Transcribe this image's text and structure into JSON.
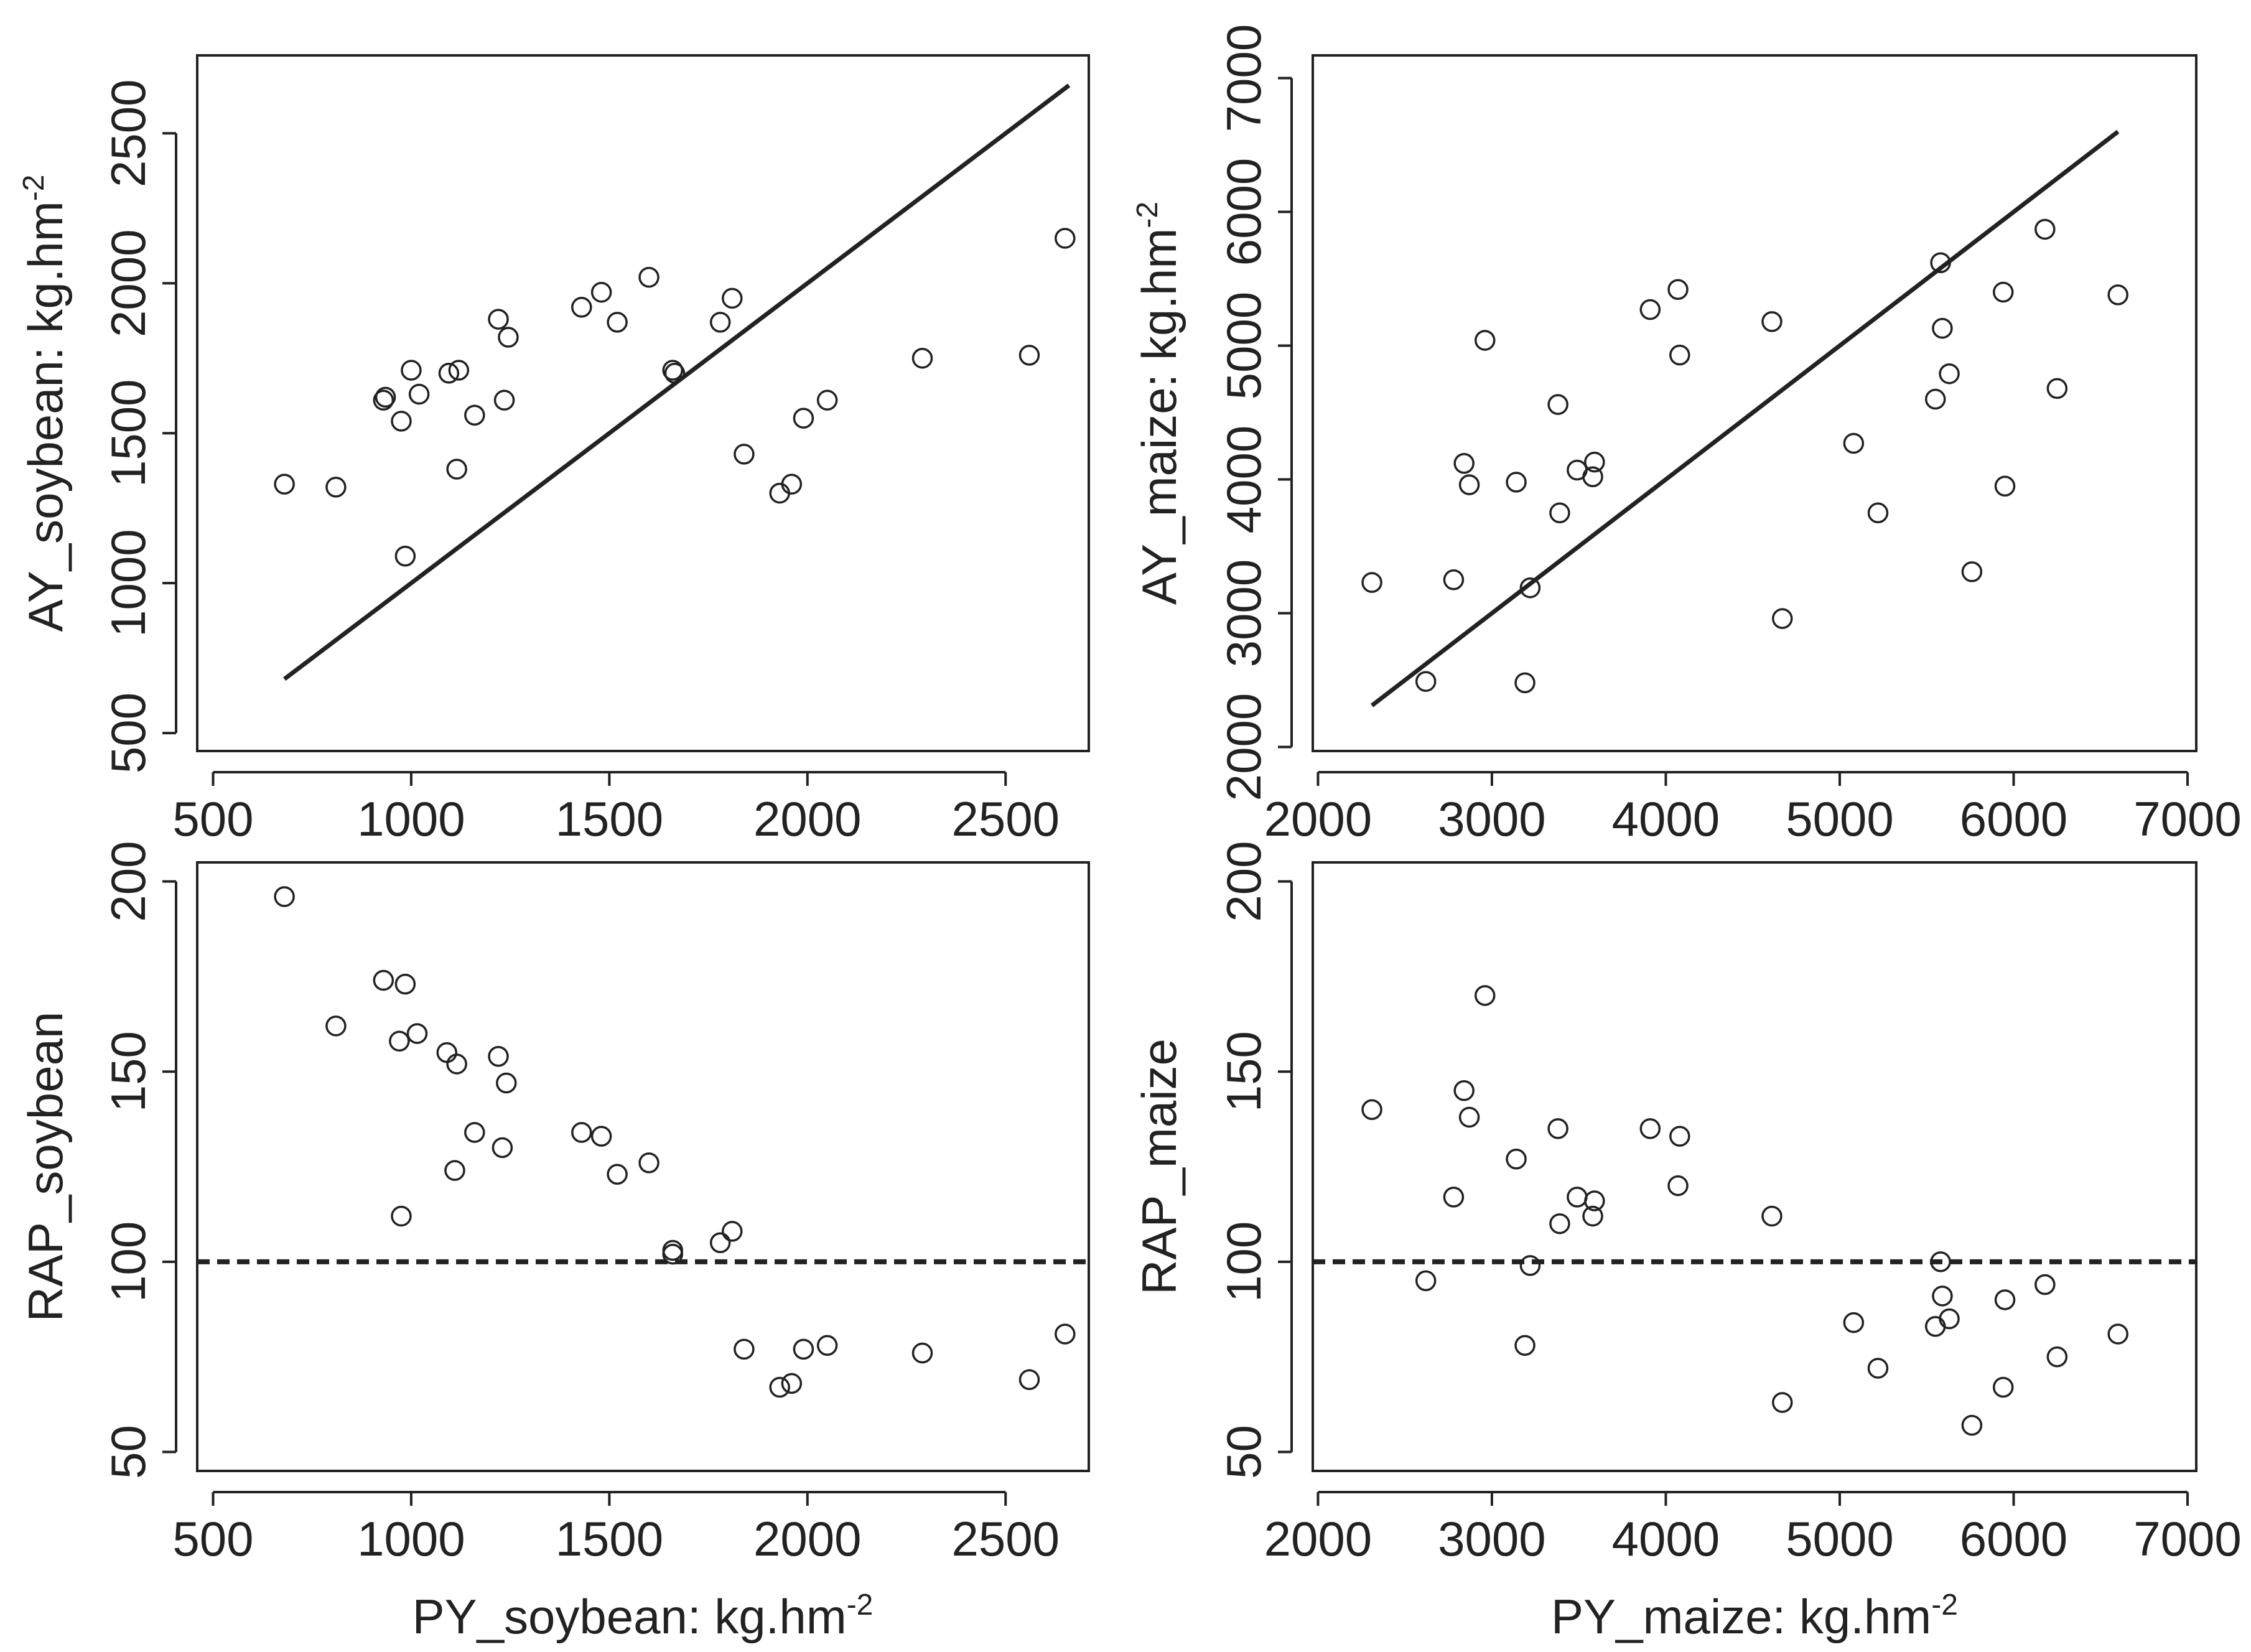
{
  "colors": {
    "ink": "#222222",
    "background": "#ffffff"
  },
  "chart_data": [
    {
      "type": "scatter",
      "title": "",
      "xlabel": "",
      "ylabel": "AY_soybean: kg.hm",
      "ylabel_sup": "-2",
      "xlim": [
        460,
        2710
      ],
      "ylim": [
        440,
        2760
      ],
      "xticks": [
        500,
        1000,
        1500,
        2000,
        2500
      ],
      "yticks": [
        500,
        1000,
        1500,
        2000,
        2500
      ],
      "x": [
        680,
        810,
        930,
        935,
        975,
        985,
        1000,
        1020,
        1095,
        1115,
        1120,
        1160,
        1220,
        1235,
        1245,
        1430,
        1480,
        1520,
        1600,
        1660,
        1665,
        1780,
        1810,
        1840,
        1930,
        1960,
        1990,
        2050,
        2290,
        2560,
        2650
      ],
      "y": [
        1330,
        1320,
        1610,
        1620,
        1540,
        1090,
        1710,
        1630,
        1700,
        1380,
        1710,
        1560,
        1880,
        1610,
        1820,
        1920,
        1970,
        1870,
        2020,
        1710,
        1700,
        1870,
        1950,
        1430,
        1300,
        1330,
        1550,
        1610,
        1750,
        1760,
        2150
      ],
      "lines": [
        {
          "name": "1:1 line",
          "style": "solid",
          "x": [
            680,
            2660
          ],
          "y": [
            680,
            2660
          ]
        }
      ]
    },
    {
      "type": "scatter",
      "title": "",
      "xlabel": "",
      "ylabel": "AY_maize: kg.hm",
      "ylabel_sup": "-2",
      "xlim": [
        1970,
        7050
      ],
      "ylim": [
        1970,
        7170
      ],
      "xticks": [
        2000,
        3000,
        4000,
        5000,
        6000,
        7000
      ],
      "yticks": [
        2000,
        3000,
        4000,
        5000,
        6000,
        7000
      ],
      "x": [
        2310,
        2620,
        2780,
        2840,
        2870,
        2960,
        3140,
        3190,
        3220,
        3380,
        3390,
        3490,
        3580,
        3590,
        3910,
        4070,
        4080,
        4610,
        4670,
        5080,
        5220,
        5550,
        5580,
        5590,
        5630,
        5760,
        5940,
        5950,
        6180,
        6250,
        6600
      ],
      "y": [
        3230,
        2490,
        3250,
        4120,
        3960,
        5040,
        3980,
        2480,
        3190,
        4560,
        3750,
        4070,
        4020,
        4130,
        5270,
        5420,
        4930,
        5180,
        2960,
        4270,
        3750,
        4600,
        5620,
        5130,
        4790,
        3310,
        5400,
        3950,
        5870,
        4680,
        5380
      ],
      "lines": [
        {
          "name": "1:1 line",
          "style": "solid",
          "x": [
            2310,
            6600
          ],
          "y": [
            2310,
            6600
          ]
        }
      ]
    },
    {
      "type": "scatter",
      "title": "",
      "xlabel": "PY_soybean: kg.hm",
      "xlabel_sup": "-2",
      "ylabel": "RAP_soybean",
      "xlim": [
        460,
        2710
      ],
      "ylim": [
        45,
        205
      ],
      "xticks": [
        500,
        1000,
        1500,
        2000,
        2500
      ],
      "yticks": [
        50,
        100,
        150,
        200
      ],
      "x": [
        680,
        810,
        930,
        970,
        975,
        985,
        1015,
        1090,
        1110,
        1115,
        1160,
        1220,
        1230,
        1240,
        1430,
        1480,
        1520,
        1600,
        1660,
        1660,
        1780,
        1810,
        1840,
        1930,
        1960,
        1990,
        2050,
        2290,
        2560,
        2650
      ],
      "y": [
        196,
        162,
        174,
        158,
        112,
        173,
        160,
        155,
        124,
        152,
        134,
        154,
        130,
        147,
        134,
        133,
        123,
        126,
        103,
        102,
        105,
        108,
        77,
        67,
        68,
        77,
        78,
        76,
        69,
        81
      ],
      "lines": [
        {
          "name": "RAP = 100",
          "style": "dashed",
          "x": [
            460,
            2710
          ],
          "y": [
            100,
            100
          ]
        }
      ]
    },
    {
      "type": "scatter",
      "title": "",
      "xlabel": "PY_maize: kg.hm",
      "xlabel_sup": "-2",
      "ylabel": "RAP_maize",
      "xlim": [
        1970,
        7050
      ],
      "ylim": [
        45,
        205
      ],
      "xticks": [
        2000,
        3000,
        4000,
        5000,
        6000,
        7000
      ],
      "yticks": [
        50,
        100,
        150,
        200
      ],
      "x": [
        2310,
        2620,
        2780,
        2840,
        2870,
        2960,
        3140,
        3190,
        3220,
        3380,
        3390,
        3490,
        3580,
        3590,
        3910,
        4070,
        4080,
        4610,
        4670,
        5080,
        5220,
        5550,
        5580,
        5590,
        5630,
        5760,
        5940,
        5950,
        6180,
        6250,
        6600
      ],
      "y": [
        140,
        95,
        117,
        145,
        138,
        170,
        127,
        78,
        99,
        135,
        110,
        117,
        112,
        116,
        135,
        120,
        133,
        112,
        63,
        84,
        72,
        83,
        100,
        91,
        85,
        57,
        67,
        90,
        94,
        75,
        81
      ],
      "lines": [
        {
          "name": "RAP = 100",
          "style": "dashed",
          "x": [
            1970,
            7050
          ],
          "y": [
            100,
            100
          ]
        }
      ]
    }
  ]
}
